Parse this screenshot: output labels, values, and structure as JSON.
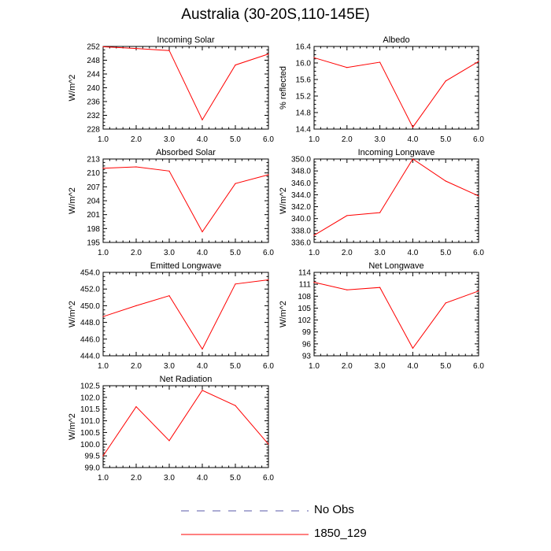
{
  "title": "Australia (30-20S,110-145E)",
  "colors": {
    "model": "#ff0000",
    "obs": "#5a5aa8",
    "axis": "#000000"
  },
  "legend": {
    "obs_label": "No Obs",
    "model_label": "1850_129"
  },
  "chart_data": [
    {
      "type": "line",
      "title": "Incoming Solar",
      "ylabel": "W/m^2",
      "x": [
        1,
        2,
        3,
        4,
        5,
        6
      ],
      "xticks": [
        "1.0",
        "2.0",
        "3.0",
        "4.0",
        "5.0",
        "6.0"
      ],
      "ylim": [
        228,
        252
      ],
      "yticks": [
        "228",
        "232",
        "236",
        "240",
        "244",
        "248",
        "252"
      ],
      "series": [
        {
          "name": "1850_129",
          "values": [
            251.9,
            251.4,
            250.8,
            230.7,
            246.6,
            249.8
          ]
        }
      ]
    },
    {
      "type": "line",
      "title": "Albedo",
      "ylabel": "% reflected",
      "x": [
        1,
        2,
        3,
        4,
        5,
        6
      ],
      "xticks": [
        "1.0",
        "2.0",
        "3.0",
        "4.0",
        "5.0",
        "6.0"
      ],
      "ylim": [
        14.4,
        16.6
      ],
      "yticks": [
        "14.4",
        "14.8",
        "15.2",
        "15.6",
        "16.0",
        "16.4"
      ],
      "series": [
        {
          "name": "1850_129",
          "values": [
            16.3,
            16.04,
            16.18,
            14.45,
            15.68,
            16.2
          ]
        }
      ]
    },
    {
      "type": "line",
      "title": "Absorbed Solar",
      "ylabel": "W/m^2",
      "x": [
        1,
        2,
        3,
        4,
        5,
        6
      ],
      "xticks": [
        "1.0",
        "2.0",
        "3.0",
        "4.0",
        "5.0",
        "6.0"
      ],
      "ylim": [
        195,
        213
      ],
      "yticks": [
        "195",
        "198",
        "201",
        "204",
        "207",
        "210",
        "213"
      ],
      "series": [
        {
          "name": "1850_129",
          "values": [
            211.0,
            211.3,
            210.4,
            197.3,
            207.7,
            209.6
          ]
        }
      ]
    },
    {
      "type": "line",
      "title": "Incoming Longwave",
      "ylabel": "W/m^2",
      "x": [
        1,
        2,
        3,
        4,
        5,
        6
      ],
      "xticks": [
        "1.0",
        "2.0",
        "3.0",
        "4.0",
        "5.0",
        "6.0"
      ],
      "ylim": [
        336,
        350
      ],
      "yticks": [
        "336.0",
        "338.0",
        "340.0",
        "342.0",
        "344.0",
        "346.0",
        "348.0",
        "350.0"
      ],
      "series": [
        {
          "name": "1850_129",
          "values": [
            337.2,
            340.5,
            341.0,
            350.0,
            346.3,
            343.8
          ]
        }
      ]
    },
    {
      "type": "line",
      "title": "Emitted Longwave",
      "ylabel": "W/m^2",
      "x": [
        1,
        2,
        3,
        4,
        5,
        6
      ],
      "xticks": [
        "1.0",
        "2.0",
        "3.0",
        "4.0",
        "5.0",
        "6.0"
      ],
      "ylim": [
        444,
        454
      ],
      "yticks": [
        "444.0",
        "446.0",
        "448.0",
        "450.0",
        "452.0",
        "454.0"
      ],
      "series": [
        {
          "name": "1850_129",
          "values": [
            448.7,
            450.0,
            451.2,
            444.8,
            452.6,
            453.1
          ]
        }
      ]
    },
    {
      "type": "line",
      "title": "Net Longwave",
      "ylabel": "W/m^2",
      "x": [
        1,
        2,
        3,
        4,
        5,
        6
      ],
      "xticks": [
        "1.0",
        "2.0",
        "3.0",
        "4.0",
        "5.0",
        "6.0"
      ],
      "ylim": [
        93,
        114
      ],
      "yticks": [
        "93",
        "96",
        "99",
        "102",
        "105",
        "108",
        "111",
        "114"
      ],
      "series": [
        {
          "name": "1850_129",
          "values": [
            111.5,
            109.6,
            110.2,
            94.9,
            106.3,
            109.3
          ]
        }
      ]
    },
    {
      "type": "line",
      "title": "Net Radiation",
      "ylabel": "W/m^2",
      "x": [
        1,
        2,
        3,
        4,
        5,
        6
      ],
      "xticks": [
        "1.0",
        "2.0",
        "3.0",
        "4.0",
        "5.0",
        "6.0"
      ],
      "ylim": [
        99.0,
        102.5
      ],
      "yticks": [
        "99.0",
        "99.5",
        "100.0",
        "100.5",
        "101.0",
        "101.5",
        "102.0",
        "102.5"
      ],
      "series": [
        {
          "name": "1850_129",
          "values": [
            99.5,
            101.6,
            100.15,
            102.3,
            101.65,
            100.0
          ]
        }
      ]
    }
  ]
}
